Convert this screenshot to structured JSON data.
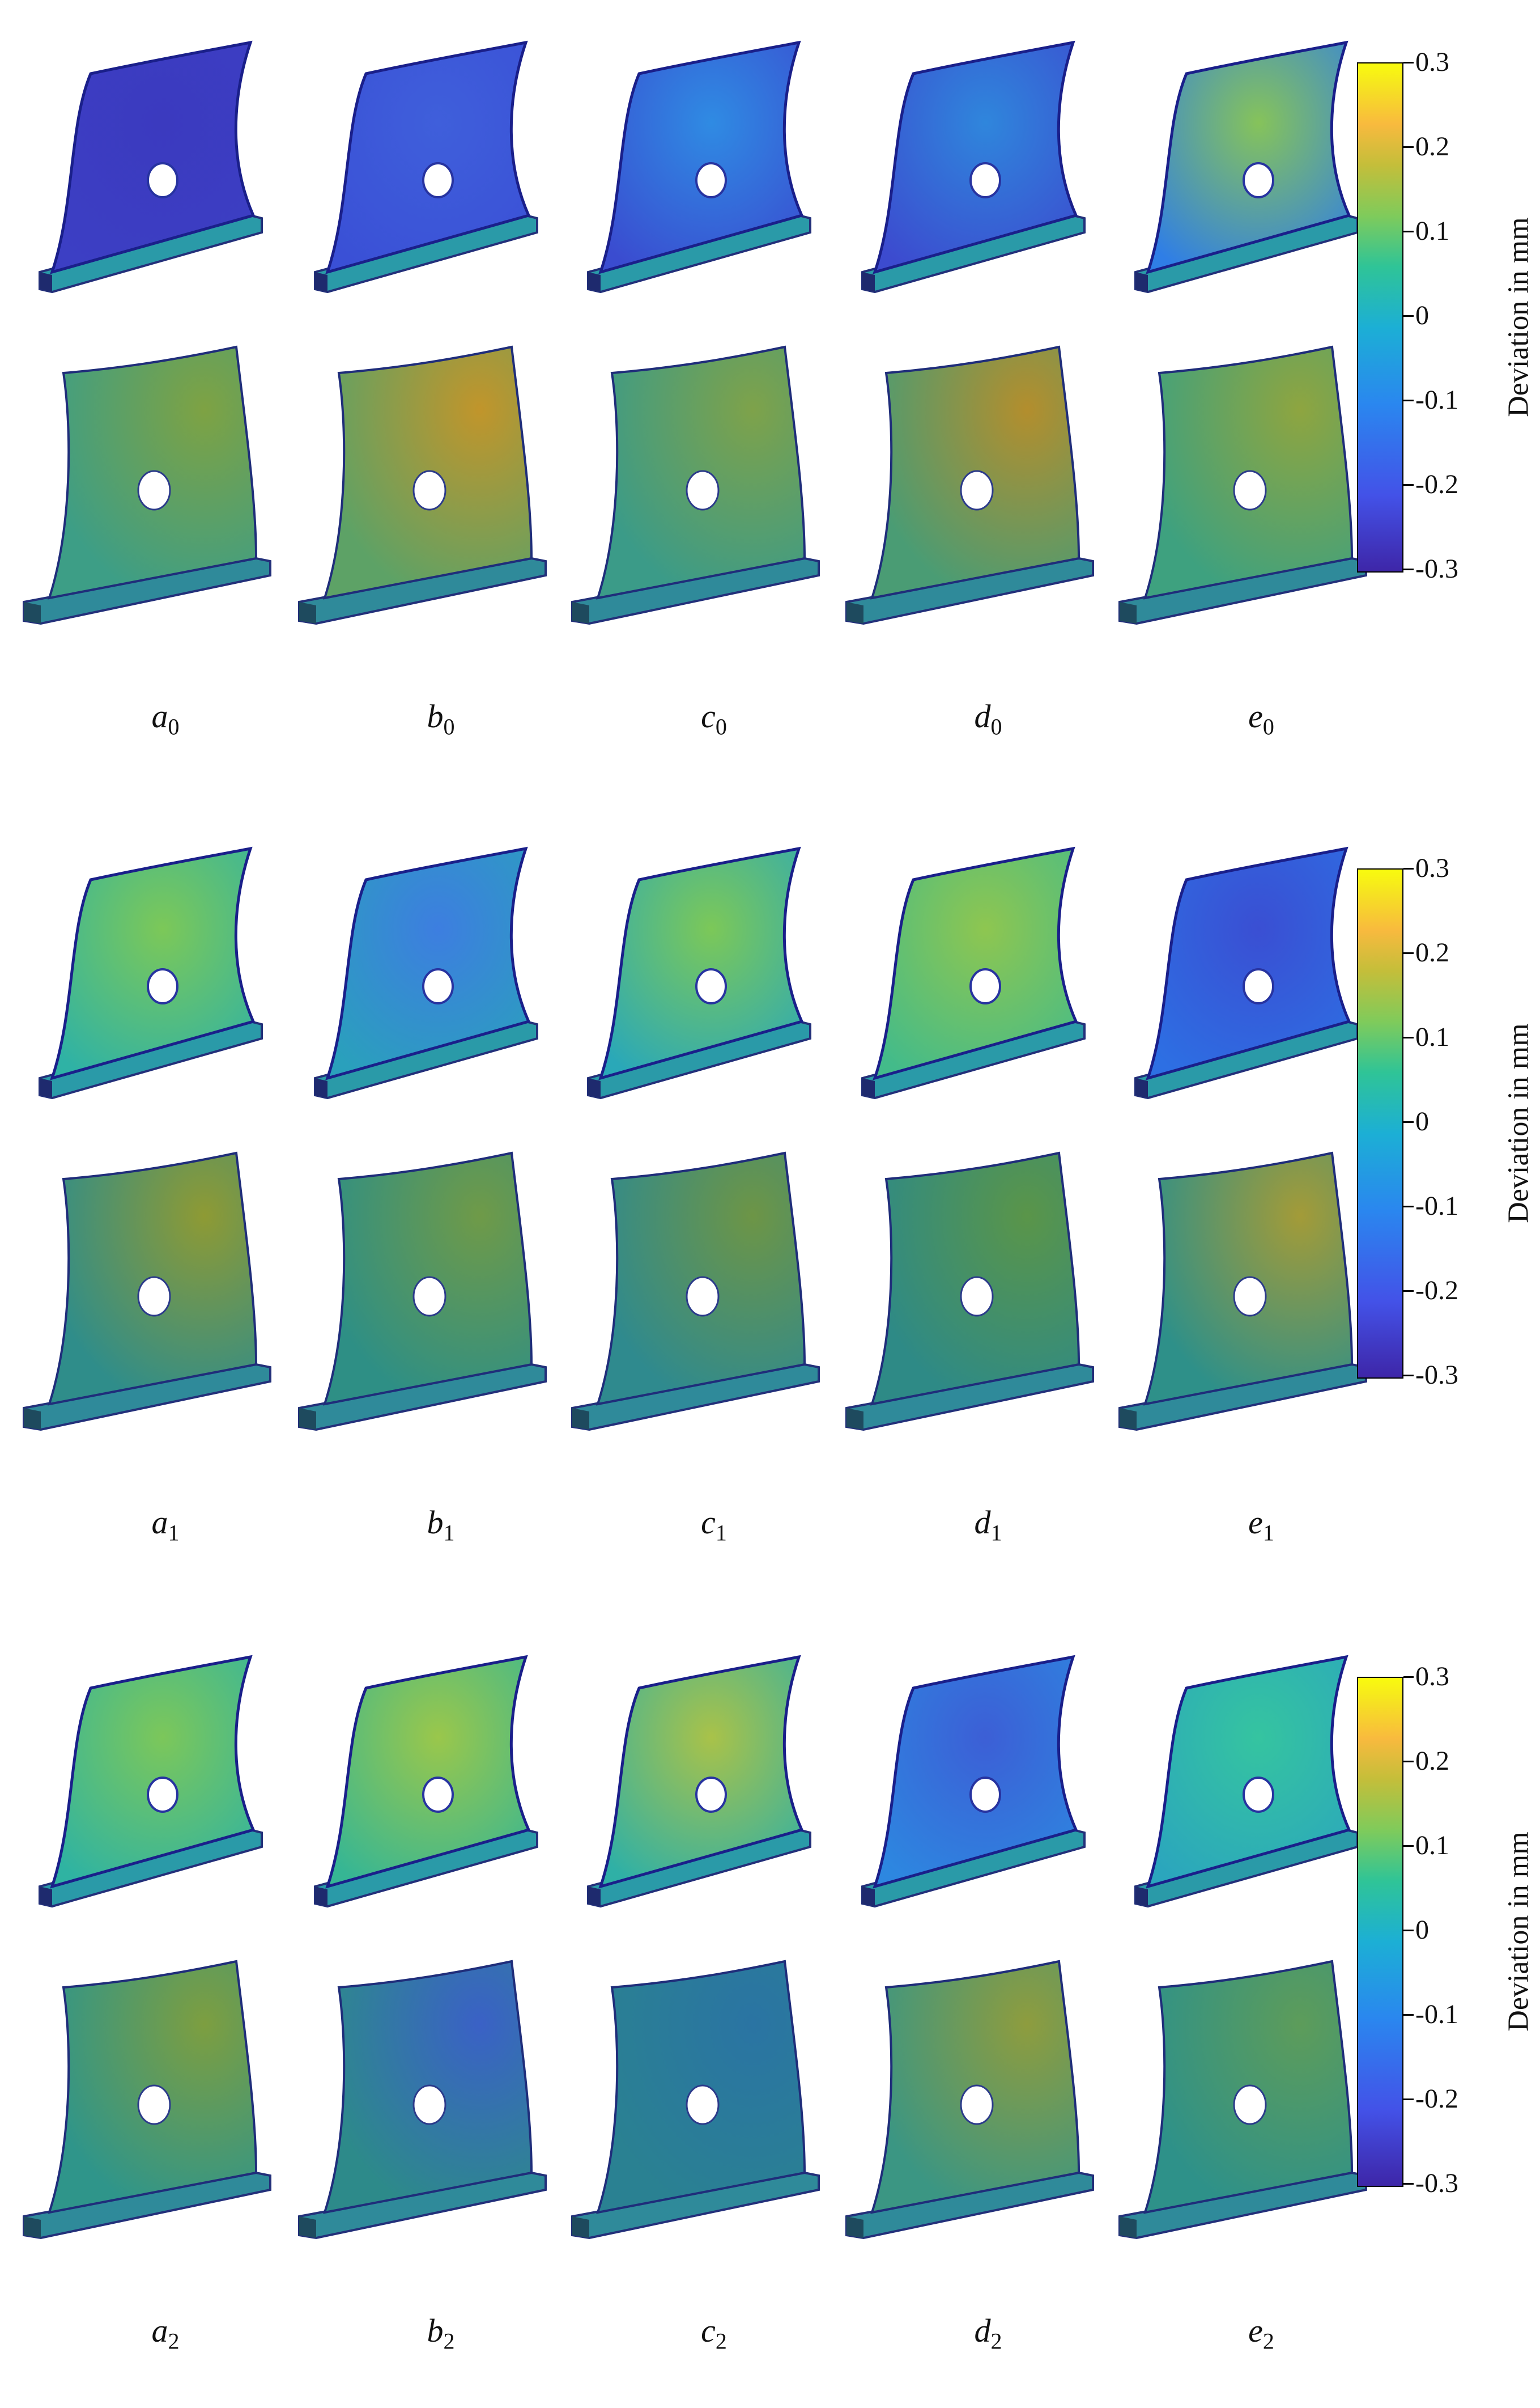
{
  "colorbar": {
    "title": "Deviation in mm",
    "ticks": [
      "0.3",
      "0.2",
      "0.1",
      "0",
      "-0.1",
      "-0.2",
      "-0.3"
    ],
    "range": [
      -0.3,
      0.3
    ],
    "colormap": "parula"
  },
  "groups": [
    {
      "captions": [
        {
          "letter": "a",
          "index": "0"
        },
        {
          "letter": "b",
          "index": "0"
        },
        {
          "letter": "c",
          "index": "0"
        },
        {
          "letter": "d",
          "index": "0"
        },
        {
          "letter": "e",
          "index": "0"
        }
      ],
      "front_colors": [
        "#3c3fc4",
        "#3a50d6",
        "#3a4cd0",
        "#3c4bcf",
        "#2f7ee6"
      ],
      "front_accents": [
        "#3b3abf",
        "#3f5fdb",
        "#2f8be3",
        "#2f86dc",
        "#86c35a"
      ],
      "back_colors": [
        "#3d9e86",
        "#5da266",
        "#3b9b88",
        "#4a9c74",
        "#3ea17f"
      ],
      "back_accents": [
        "#7ea243",
        "#c1952b",
        "#7ea24a",
        "#b38e2d",
        "#8ea540"
      ]
    },
    {
      "captions": [
        {
          "letter": "a",
          "index": "1"
        },
        {
          "letter": "b",
          "index": "1"
        },
        {
          "letter": "c",
          "index": "1"
        },
        {
          "letter": "d",
          "index": "1"
        },
        {
          "letter": "e",
          "index": "1"
        }
      ],
      "front_colors": [
        "#2fb2a5",
        "#2aa0bc",
        "#2aa8b8",
        "#43bb8a",
        "#2d6fe3"
      ],
      "front_accents": [
        "#7cc858",
        "#3d7ee0",
        "#7cc858",
        "#8ec650",
        "#3a4fd3"
      ],
      "back_colors": [
        "#2f8d8a",
        "#2e8f85",
        "#2f8a8e",
        "#2e8a86",
        "#2e9089"
      ],
      "back_accents": [
        "#8e9a34",
        "#6f9a48",
        "#6d9546",
        "#5a9549",
        "#a39b38"
      ]
    },
    {
      "captions": [
        {
          "letter": "a",
          "index": "2"
        },
        {
          "letter": "b",
          "index": "2"
        },
        {
          "letter": "c",
          "index": "2"
        },
        {
          "letter": "d",
          "index": "2"
        },
        {
          "letter": "e",
          "index": "2"
        }
      ],
      "front_colors": [
        "#2fb3a2",
        "#36b694",
        "#2fb0a6",
        "#2d87e0",
        "#2ba6bd"
      ],
      "front_accents": [
        "#7cc75a",
        "#9ac74b",
        "#a9c249",
        "#3c5fd6",
        "#35c4a0"
      ],
      "back_colors": [
        "#2f958a",
        "#2d8a8a",
        "#2a8192",
        "#3b9683",
        "#2e9189"
      ],
      "back_accents": [
        "#7d9e40",
        "#3a61c6",
        "#2a74a3",
        "#8e9c3e",
        "#5d9c5a"
      ]
    }
  ]
}
